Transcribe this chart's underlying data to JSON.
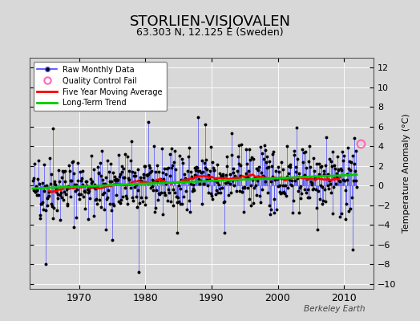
{
  "title": "STORLIEN-VISJOVALEN",
  "subtitle": "63.303 N, 12.125 E (Sweden)",
  "ylabel": "Temperature Anomaly (°C)",
  "watermark": "Berkeley Earth",
  "ylim": [
    -10.5,
    13
  ],
  "xlim": [
    1962.5,
    2014.5
  ],
  "xticks": [
    1970,
    1980,
    1990,
    2000,
    2010
  ],
  "yticks": [
    -10,
    -8,
    -6,
    -4,
    -2,
    0,
    2,
    4,
    6,
    8,
    10,
    12
  ],
  "bg_color": "#d8d8d8",
  "plot_bg_color": "#d8d8d8",
  "raw_color": "#4444ff",
  "dot_color": "#000000",
  "ma_color": "#ff0000",
  "trend_color": "#00cc00",
  "qc_color": "#ff69b4",
  "seed": 42,
  "n_months": 588,
  "start_year": 1963.0,
  "qc_fail_x": 2012.5,
  "qc_fail_y": 4.3
}
